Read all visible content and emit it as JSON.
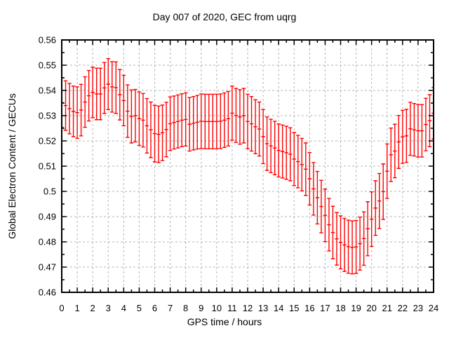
{
  "chart_data": {
    "type": "scatter",
    "style": "yerrorbars",
    "title": "Day 007 of 2020, GEC from uqrg",
    "xlabel": "GPS time / hours",
    "ylabel": "Global Electron Content / GECUs",
    "xlim": [
      0,
      24
    ],
    "ylim": [
      0.46,
      0.56
    ],
    "xtick_labels": [
      "0",
      "1",
      "2",
      "3",
      "4",
      "5",
      "6",
      "7",
      "8",
      "9",
      "10",
      "11",
      "12",
      "13",
      "14",
      "15",
      "16",
      "17",
      "18",
      "19",
      "20",
      "21",
      "22",
      "23",
      "24"
    ],
    "ytick_labels": [
      "0.46",
      "0.47",
      "0.48",
      "0.49",
      "0.5",
      "0.51",
      "0.52",
      "0.53",
      "0.54",
      "0.55",
      "0.56"
    ],
    "x_minor_step": 0.5,
    "y_minor_step": 0.005,
    "grid": true,
    "legend_position": "none",
    "colors": {
      "series": "#ff0000",
      "grid": "#b5b5b5",
      "axis": "#000000",
      "background": "#ffffff"
    },
    "series": [
      {
        "name": "GEC",
        "color": "#ff0000",
        "points": [
          [
            0.0,
            0.5352,
            0.0098
          ],
          [
            0.25,
            0.534,
            0.0098
          ],
          [
            0.5,
            0.5328,
            0.01
          ],
          [
            0.75,
            0.5317,
            0.01
          ],
          [
            1.0,
            0.5312,
            0.0102
          ],
          [
            1.25,
            0.5322,
            0.0102
          ],
          [
            1.5,
            0.5354,
            0.01
          ],
          [
            1.75,
            0.5379,
            0.01
          ],
          [
            2.0,
            0.5392,
            0.01
          ],
          [
            2.25,
            0.5386,
            0.0102
          ],
          [
            2.5,
            0.5386,
            0.0102
          ],
          [
            2.75,
            0.541,
            0.0101
          ],
          [
            3.0,
            0.5425,
            0.0101
          ],
          [
            3.25,
            0.5414,
            0.01
          ],
          [
            3.5,
            0.5411,
            0.0102
          ],
          [
            3.75,
            0.5383,
            0.01
          ],
          [
            4.0,
            0.536,
            0.01
          ],
          [
            4.25,
            0.5318,
            0.0104
          ],
          [
            4.5,
            0.5297,
            0.0105
          ],
          [
            4.75,
            0.53,
            0.0104
          ],
          [
            5.0,
            0.5288,
            0.0106
          ],
          [
            5.25,
            0.5282,
            0.0106
          ],
          [
            5.5,
            0.526,
            0.0108
          ],
          [
            5.75,
            0.5244,
            0.011
          ],
          [
            6.0,
            0.5229,
            0.0112
          ],
          [
            6.25,
            0.5226,
            0.0112
          ],
          [
            6.5,
            0.5232,
            0.011
          ],
          [
            6.75,
            0.5245,
            0.0108
          ],
          [
            7.0,
            0.5268,
            0.0106
          ],
          [
            7.25,
            0.5273,
            0.0105
          ],
          [
            7.5,
            0.5277,
            0.0105
          ],
          [
            7.75,
            0.5282,
            0.0105
          ],
          [
            8.0,
            0.5285,
            0.0105
          ],
          [
            8.25,
            0.5266,
            0.0106
          ],
          [
            8.5,
            0.527,
            0.0106
          ],
          [
            8.75,
            0.5274,
            0.0106
          ],
          [
            9.0,
            0.5278,
            0.0108
          ],
          [
            9.25,
            0.5277,
            0.0108
          ],
          [
            9.5,
            0.5277,
            0.0108
          ],
          [
            9.75,
            0.5277,
            0.0108
          ],
          [
            10.0,
            0.5277,
            0.0108
          ],
          [
            10.25,
            0.5278,
            0.0108
          ],
          [
            10.5,
            0.5282,
            0.0108
          ],
          [
            10.75,
            0.5288,
            0.0108
          ],
          [
            11.0,
            0.531,
            0.0107
          ],
          [
            11.25,
            0.5301,
            0.0107
          ],
          [
            11.5,
            0.5295,
            0.0108
          ],
          [
            11.75,
            0.53,
            0.0108
          ],
          [
            12.0,
            0.5277,
            0.0108
          ],
          [
            12.25,
            0.5268,
            0.0108
          ],
          [
            12.5,
            0.5256,
            0.0107
          ],
          [
            12.75,
            0.5247,
            0.0107
          ],
          [
            13.0,
            0.5217,
            0.0107
          ],
          [
            13.25,
            0.5189,
            0.0106
          ],
          [
            13.5,
            0.518,
            0.0106
          ],
          [
            13.75,
            0.5172,
            0.0106
          ],
          [
            14.0,
            0.5162,
            0.0105
          ],
          [
            14.25,
            0.5158,
            0.0105
          ],
          [
            14.5,
            0.5153,
            0.0105
          ],
          [
            14.75,
            0.5147,
            0.0105
          ],
          [
            15.0,
            0.5128,
            0.0105
          ],
          [
            15.25,
            0.5118,
            0.0104
          ],
          [
            15.5,
            0.5106,
            0.0104
          ],
          [
            15.75,
            0.5088,
            0.0104
          ],
          [
            16.0,
            0.505,
            0.0104
          ],
          [
            16.25,
            0.501,
            0.0104
          ],
          [
            16.5,
            0.4975,
            0.0104
          ],
          [
            16.75,
            0.494,
            0.0104
          ],
          [
            17.0,
            0.4905,
            0.0104
          ],
          [
            17.25,
            0.4868,
            0.0104
          ],
          [
            17.5,
            0.4837,
            0.0104
          ],
          [
            17.75,
            0.4812,
            0.0104
          ],
          [
            18.0,
            0.4798,
            0.0105
          ],
          [
            18.25,
            0.4788,
            0.0105
          ],
          [
            18.5,
            0.4781,
            0.0105
          ],
          [
            18.75,
            0.4778,
            0.0105
          ],
          [
            19.0,
            0.478,
            0.0105
          ],
          [
            19.25,
            0.4793,
            0.0105
          ],
          [
            19.5,
            0.4813,
            0.0106
          ],
          [
            19.75,
            0.4852,
            0.0107
          ],
          [
            20.0,
            0.489,
            0.0108
          ],
          [
            20.25,
            0.4934,
            0.0108
          ],
          [
            20.5,
            0.4962,
            0.0109
          ],
          [
            20.75,
            0.4999,
            0.011
          ],
          [
            21.0,
            0.508,
            0.0108
          ],
          [
            21.25,
            0.5145,
            0.0106
          ],
          [
            21.5,
            0.516,
            0.0106
          ],
          [
            21.75,
            0.5196,
            0.0105
          ],
          [
            22.0,
            0.5216,
            0.0105
          ],
          [
            22.25,
            0.522,
            0.0105
          ],
          [
            22.5,
            0.5248,
            0.0105
          ],
          [
            22.75,
            0.5244,
            0.0104
          ],
          [
            23.0,
            0.524,
            0.0104
          ],
          [
            23.25,
            0.524,
            0.0104
          ],
          [
            23.5,
            0.5265,
            0.0104
          ],
          [
            23.75,
            0.528,
            0.0103
          ],
          [
            24.0,
            0.531,
            0.0102
          ]
        ]
      }
    ]
  }
}
